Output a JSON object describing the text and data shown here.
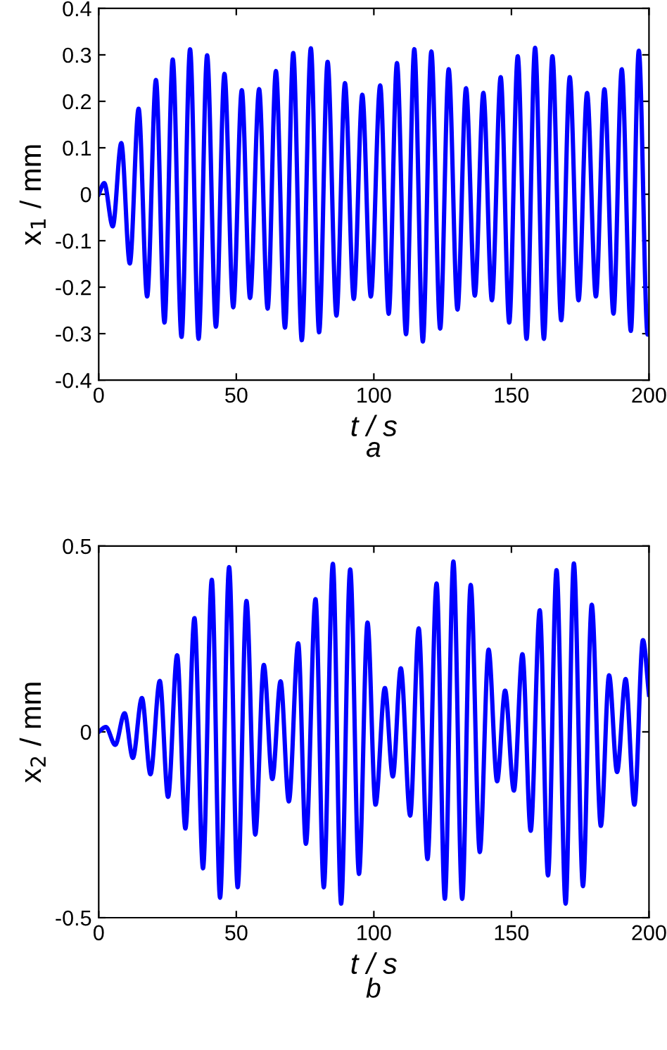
{
  "chart_data": [
    {
      "type": "line",
      "xlabel": "t / s",
      "ylabel": "x$_{1}$ / mm",
      "annotations": [
        "a"
      ],
      "xlim": [
        0,
        200
      ],
      "ylim": [
        -0.4,
        0.4
      ],
      "xticks": [
        0,
        50,
        100,
        150,
        200
      ],
      "yticks": [
        -0.4,
        -0.3,
        -0.2,
        -0.1,
        0,
        0.1,
        0.2,
        0.3,
        0.4
      ],
      "grid": false,
      "legend": false,
      "series": [
        {
          "color": "#0000ff",
          "x": [
            0,
            2.0,
            5.1,
            8.2,
            11.3,
            14.5,
            17.6,
            20.8,
            23.9,
            26.9,
            30.1,
            33.2,
            36.3,
            39.4,
            42.6,
            45.7,
            48.9,
            52.0,
            55.0,
            58.3,
            61.4,
            64.4,
            67.7,
            70.7,
            73.8,
            77.1,
            80.1,
            83.2,
            86.4,
            89.5,
            92.7,
            95.8,
            98.9,
            102.3,
            105.4,
            108.4,
            111.7,
            114.7,
            117.8,
            120.9,
            124.1,
            127.2,
            130.4,
            133.5,
            136.7,
            139.8,
            142.9,
            146.1,
            149.2,
            152.3,
            155.5,
            158.6,
            161.8,
            164.9,
            168.1,
            171.2,
            174.4,
            177.5,
            180.7,
            183.8,
            187.1,
            190.1,
            193.4,
            196.3,
            199.5,
            200
          ],
          "values": [
            0,
            0.024,
            -0.069,
            0.11,
            -0.149,
            0.184,
            -0.22,
            0.246,
            -0.276,
            0.29,
            -0.307,
            0.312,
            -0.311,
            0.299,
            -0.285,
            0.259,
            -0.243,
            0.224,
            -0.223,
            0.226,
            -0.246,
            0.265,
            -0.287,
            0.304,
            -0.314,
            0.314,
            -0.297,
            0.285,
            -0.261,
            0.239,
            -0.225,
            0.214,
            -0.22,
            0.234,
            -0.257,
            0.282,
            -0.301,
            0.312,
            -0.317,
            0.307,
            -0.289,
            0.269,
            -0.248,
            0.228,
            -0.218,
            0.218,
            -0.228,
            0.252,
            -0.276,
            0.297,
            -0.311,
            0.315,
            -0.311,
            0.297,
            -0.271,
            0.252,
            -0.228,
            0.218,
            -0.22,
            0.226,
            -0.257,
            0.269,
            -0.294,
            0.309,
            -0.302,
            -0.3
          ]
        }
      ]
    },
    {
      "type": "line",
      "xlabel": "t / s",
      "ylabel": "x$_{2}$ / mm",
      "annotations": [
        "b"
      ],
      "xlim": [
        0,
        200
      ],
      "ylim": [
        -0.5,
        0.5
      ],
      "xticks": [
        0,
        50,
        100,
        150,
        200
      ],
      "yticks": [
        -0.5,
        0,
        0.5
      ],
      "grid": false,
      "legend": false,
      "series": [
        {
          "color": "#0000ff",
          "x": [
            0,
            2.6,
            6.0,
            9.4,
            12.4,
            15.7,
            18.8,
            22.2,
            25.2,
            28.5,
            31.5,
            34.8,
            37.9,
            41.1,
            44.1,
            47.4,
            50.5,
            53.7,
            56.9,
            60.0,
            63.1,
            66.1,
            69.1,
            72.5,
            75.3,
            78.8,
            81.8,
            85.1,
            88.1,
            91.4,
            94.6,
            97.7,
            100.6,
            104.0,
            106.9,
            109.8,
            113.2,
            116.3,
            119.5,
            122.8,
            125.8,
            128.9,
            132.1,
            135.2,
            138.5,
            141.7,
            144.8,
            147.7,
            150.9,
            154.0,
            157.0,
            160.3,
            163.3,
            166.4,
            169.7,
            172.7,
            176.0,
            179.2,
            182.5,
            185.5,
            188.4,
            191.5,
            194.7,
            197.8,
            200
          ],
          "values": [
            0,
            0.013,
            -0.035,
            0.05,
            -0.07,
            0.091,
            -0.114,
            0.137,
            -0.175,
            0.206,
            -0.26,
            0.306,
            -0.367,
            0.409,
            -0.446,
            0.443,
            -0.418,
            0.352,
            -0.276,
            0.18,
            -0.127,
            0.136,
            -0.187,
            0.238,
            -0.301,
            0.357,
            -0.418,
            0.452,
            -0.462,
            0.437,
            -0.382,
            0.294,
            -0.196,
            0.118,
            -0.12,
            0.171,
            -0.225,
            0.278,
            -0.342,
            0.399,
            -0.449,
            0.458,
            -0.449,
            0.395,
            -0.323,
            0.221,
            -0.133,
            0.111,
            -0.158,
            0.209,
            -0.266,
            0.327,
            -0.386,
            0.435,
            -0.462,
            0.453,
            -0.415,
            0.342,
            -0.253,
            0.152,
            -0.108,
            0.142,
            -0.196,
            0.247,
            0.1
          ]
        }
      ]
    }
  ]
}
